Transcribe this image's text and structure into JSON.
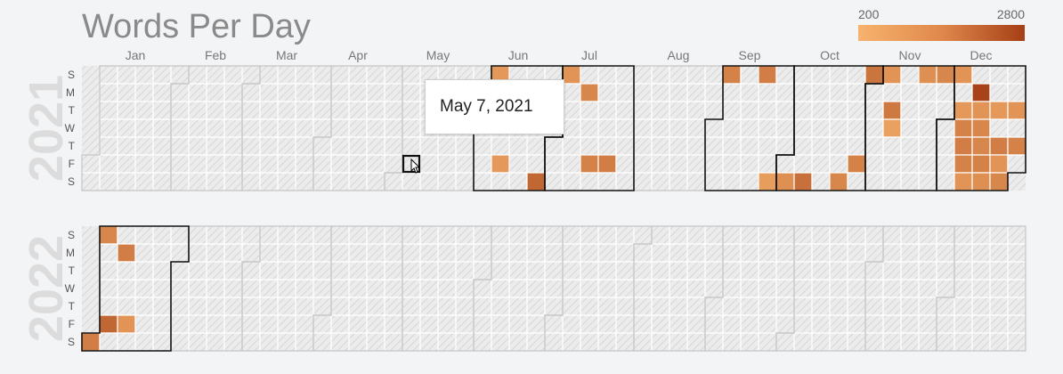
{
  "chart_data": {
    "type": "heatmap",
    "title": "Words Per Day",
    "legend": {
      "min": 200,
      "max": 2800,
      "min_label": "200",
      "max_label": "2800",
      "placement": "top-right"
    },
    "months": [
      "Jan",
      "Feb",
      "Mar",
      "Apr",
      "May",
      "Jun",
      "Jul",
      "Aug",
      "Sep",
      "Oct",
      "Nov",
      "Dec"
    ],
    "day_labels": [
      "S",
      "M",
      "T",
      "W",
      "T",
      "F",
      "S"
    ],
    "highlighted_months": {
      "2021": [
        6,
        7,
        9,
        10,
        11,
        12
      ],
      "2022": [
        1
      ]
    },
    "years": [
      {
        "year": 2021,
        "label": "2021",
        "data": [
          {
            "date": "2021-06-06",
            "value": 800
          },
          {
            "date": "2021-06-11",
            "value": 800
          },
          {
            "date": "2021-06-26",
            "value": 1900
          },
          {
            "date": "2021-07-04",
            "value": 900
          },
          {
            "date": "2021-07-12",
            "value": 1200
          },
          {
            "date": "2021-07-16",
            "value": 1300
          },
          {
            "date": "2021-07-23",
            "value": 1400
          },
          {
            "date": "2021-09-05",
            "value": 1300
          },
          {
            "date": "2021-09-19",
            "value": 1400
          },
          {
            "date": "2021-09-25",
            "value": 700
          },
          {
            "date": "2021-10-02",
            "value": 1000
          },
          {
            "date": "2021-10-09",
            "value": 1700
          },
          {
            "date": "2021-10-23",
            "value": 1200
          },
          {
            "date": "2021-10-29",
            "value": 1300
          },
          {
            "date": "2021-10-31",
            "value": 1600
          },
          {
            "date": "2021-11-07",
            "value": 900
          },
          {
            "date": "2021-11-09",
            "value": 1500
          },
          {
            "date": "2021-11-10",
            "value": 600
          },
          {
            "date": "2021-11-21",
            "value": 1000
          },
          {
            "date": "2021-11-28",
            "value": 1200
          },
          {
            "date": "2021-12-05",
            "value": 900
          },
          {
            "date": "2021-12-07",
            "value": 800
          },
          {
            "date": "2021-12-08",
            "value": 1300
          },
          {
            "date": "2021-12-09",
            "value": 1400
          },
          {
            "date": "2021-12-10",
            "value": 1300
          },
          {
            "date": "2021-12-11",
            "value": 900
          },
          {
            "date": "2021-12-13",
            "value": 2700
          },
          {
            "date": "2021-12-14",
            "value": 900
          },
          {
            "date": "2021-12-15",
            "value": 1200
          },
          {
            "date": "2021-12-16",
            "value": 1200
          },
          {
            "date": "2021-12-17",
            "value": 1300
          },
          {
            "date": "2021-12-18",
            "value": 1000
          },
          {
            "date": "2021-12-21",
            "value": 800
          },
          {
            "date": "2021-12-23",
            "value": 1400
          },
          {
            "date": "2021-12-24",
            "value": 900
          },
          {
            "date": "2021-12-25",
            "value": 1200
          },
          {
            "date": "2021-12-28",
            "value": 900
          },
          {
            "date": "2021-12-30",
            "value": 1300
          }
        ]
      },
      {
        "year": 2022,
        "label": "2022",
        "data": [
          {
            "date": "2022-01-01",
            "value": 1400
          },
          {
            "date": "2022-01-02",
            "value": 1200
          },
          {
            "date": "2022-01-07",
            "value": 1900
          },
          {
            "date": "2022-01-10",
            "value": 1400
          },
          {
            "date": "2022-01-14",
            "value": 900
          }
        ]
      }
    ]
  },
  "tooltip": {
    "text": "May 7, 2021"
  },
  "colors": {
    "scale_low": "#f7b36d",
    "scale_high": "#a53f16",
    "empty_cell": "#e9e9e9",
    "hatch": "#cdcdcd",
    "cell_border": "#ffffff",
    "month_outline_highlight": "#111111",
    "month_outline_normal": "#c4c4c4"
  }
}
